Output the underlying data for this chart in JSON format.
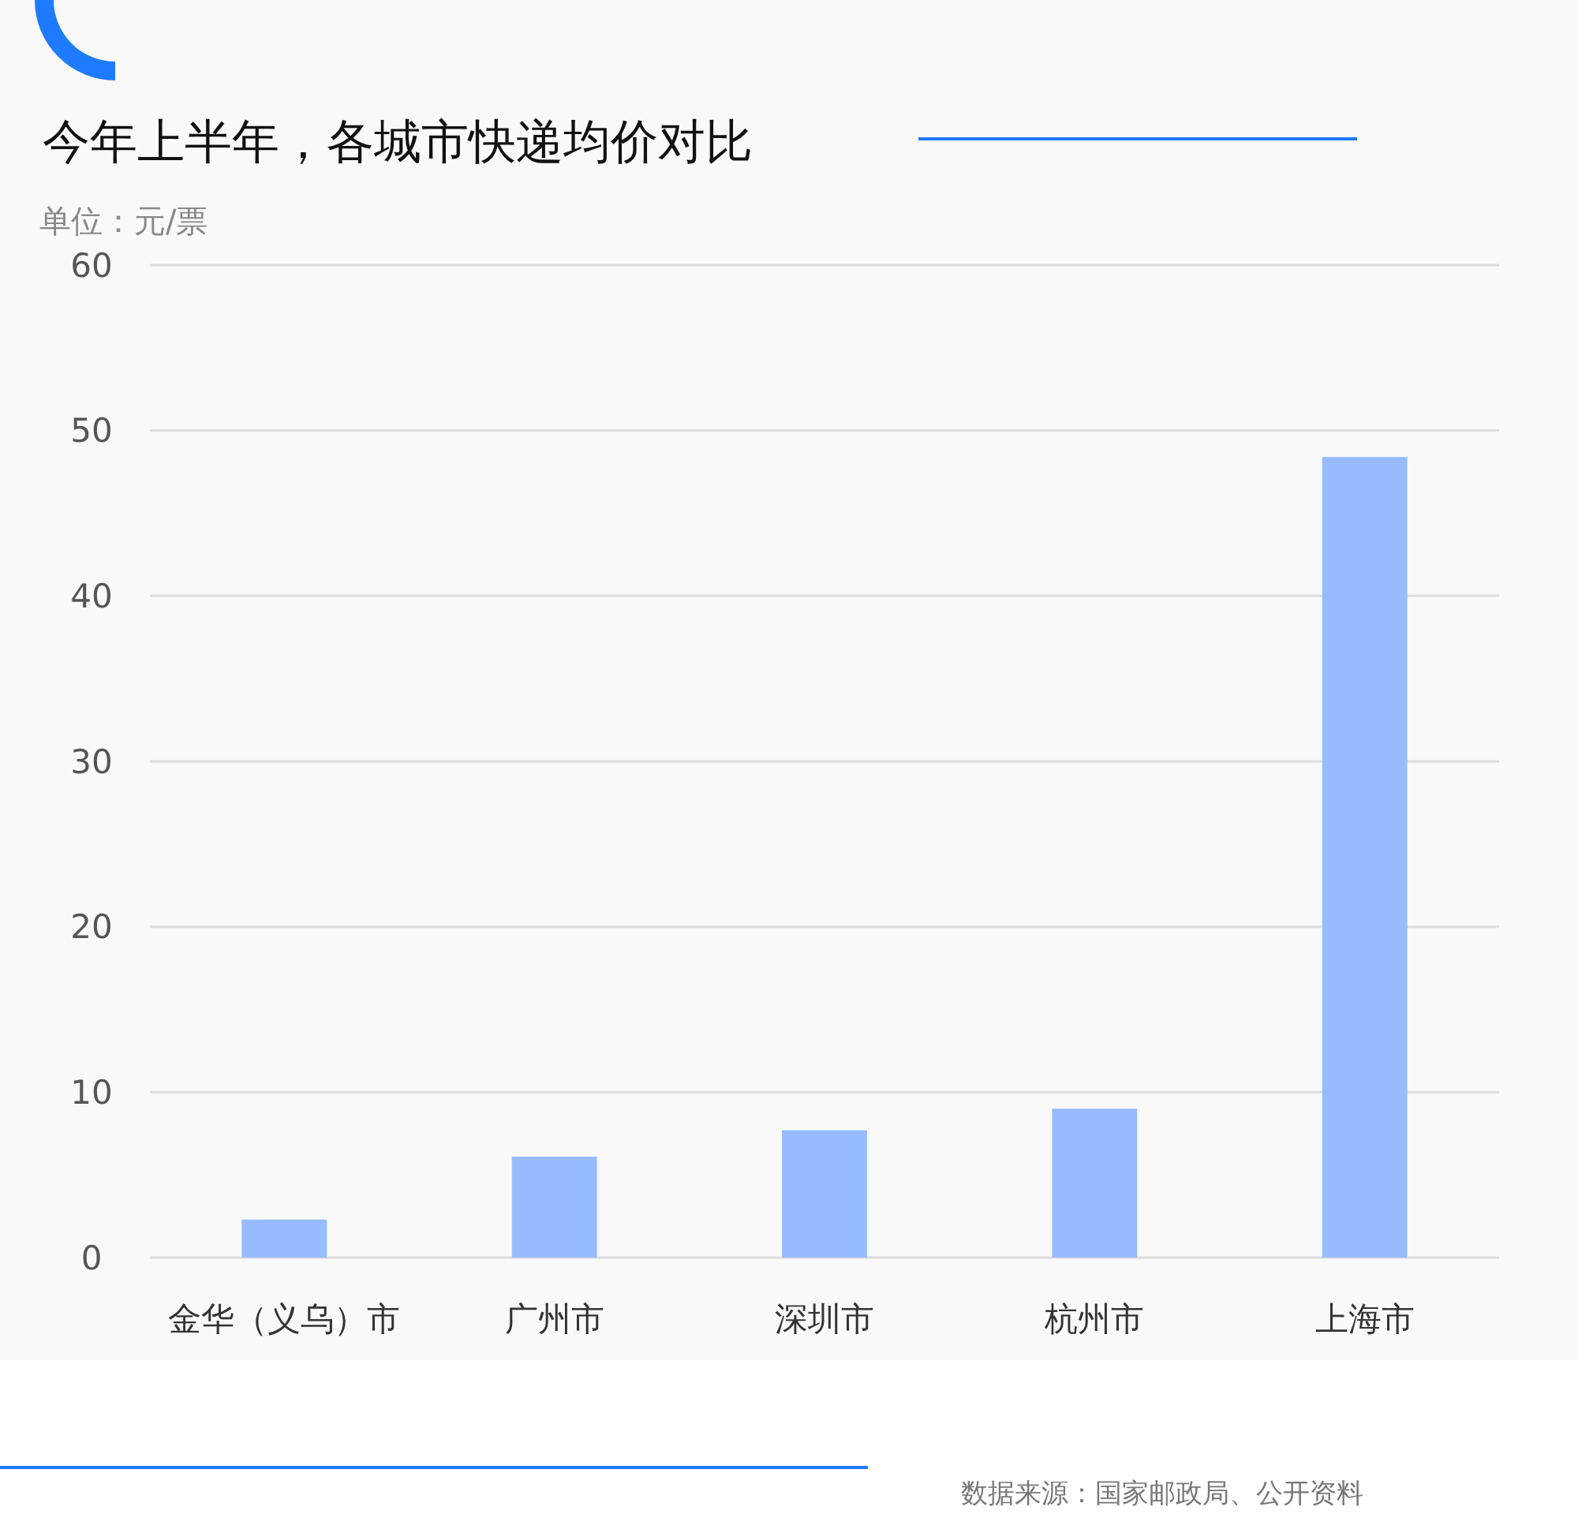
{
  "chart_data": {
    "type": "bar",
    "title": "今年上半年，各城市快递均价对比",
    "ylabel": "单位：元/票",
    "categories": [
      "金华（义乌）市",
      "广州市",
      "深圳市",
      "杭州市",
      "上海市"
    ],
    "values": [
      2.3,
      6.1,
      7.7,
      9.0,
      48.4
    ],
    "color": "#97bbff",
    "ylim": [
      0,
      60
    ],
    "yticks": [
      0,
      10,
      20,
      30,
      40,
      50,
      60
    ],
    "grid": "y",
    "annotations": [
      "数据来源：国家邮政局、公开资料"
    ]
  }
}
